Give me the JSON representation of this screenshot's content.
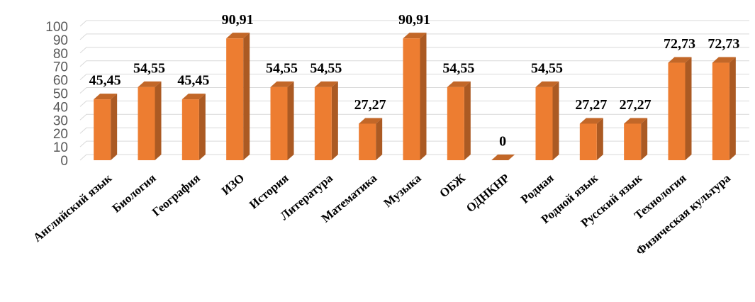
{
  "chart_data": {
    "type": "bar3d",
    "categories": [
      "Английский язык",
      "Биология",
      "География",
      "ИЗО",
      "История",
      "Литература",
      "Математика",
      "Музыка",
      "ОБЖ",
      "ОДНКНР",
      "Родная",
      "Родной язык",
      "Русский язык",
      "Технология",
      "Физическая культура"
    ],
    "values": [
      45.45,
      54.55,
      45.45,
      90.91,
      54.55,
      54.55,
      27.27,
      90.91,
      54.55,
      0,
      54.55,
      27.27,
      27.27,
      72.73,
      72.73
    ],
    "value_labels": [
      "45,45",
      "54,55",
      "45,45",
      "90,91",
      "54,55",
      "54,55",
      "27,27",
      "90,91",
      "54,55",
      "0",
      "54,55",
      "27,27",
      "27,27",
      "72,73",
      "72,73"
    ],
    "color": "#ed7d31",
    "ylim": [
      0,
      100
    ],
    "yticks": [
      0,
      10,
      20,
      30,
      40,
      50,
      60,
      70,
      80,
      90,
      100
    ],
    "grid": true
  }
}
